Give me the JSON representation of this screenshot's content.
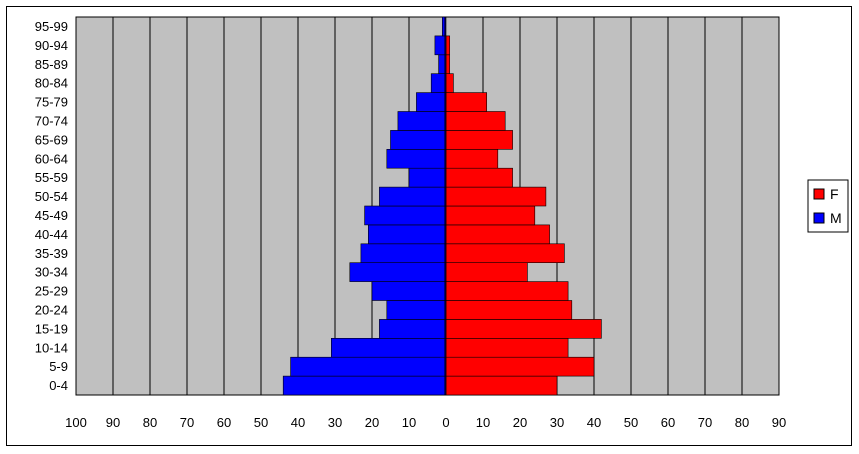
{
  "chart_data": {
    "type": "bar",
    "orientation": "horizontal",
    "title": "",
    "xlabel": "",
    "ylabel": "",
    "categories": [
      "0-4",
      "5-9",
      "10-14",
      "15-19",
      "20-24",
      "25-29",
      "30-34",
      "35-39",
      "40-44",
      "45-49",
      "50-54",
      "55-59",
      "60-64",
      "65-69",
      "70-74",
      "75-79",
      "80-84",
      "85-89",
      "90-94",
      "95-99"
    ],
    "series": [
      {
        "name": "F",
        "color": "#ff0000",
        "values": [
          30,
          40,
          33,
          42,
          34,
          33,
          22,
          32,
          28,
          24,
          27,
          18,
          14,
          18,
          16,
          11,
          2,
          1,
          1,
          0
        ]
      },
      {
        "name": "M",
        "color": "#0000ff",
        "values": [
          44,
          42,
          31,
          18,
          16,
          20,
          26,
          23,
          21,
          22,
          18,
          10,
          16,
          15,
          13,
          8,
          4,
          2,
          3,
          1
        ]
      }
    ],
    "x_tick_labels": [
      "100",
      "90",
      "80",
      "70",
      "60",
      "50",
      "40",
      "30",
      "20",
      "10",
      "0",
      "10",
      "20",
      "30",
      "40",
      "50",
      "60",
      "70",
      "80",
      "90"
    ],
    "xlim": [
      -100,
      90
    ],
    "grid": true,
    "plot_background": "#c0c0c0",
    "legend_position": "right"
  }
}
